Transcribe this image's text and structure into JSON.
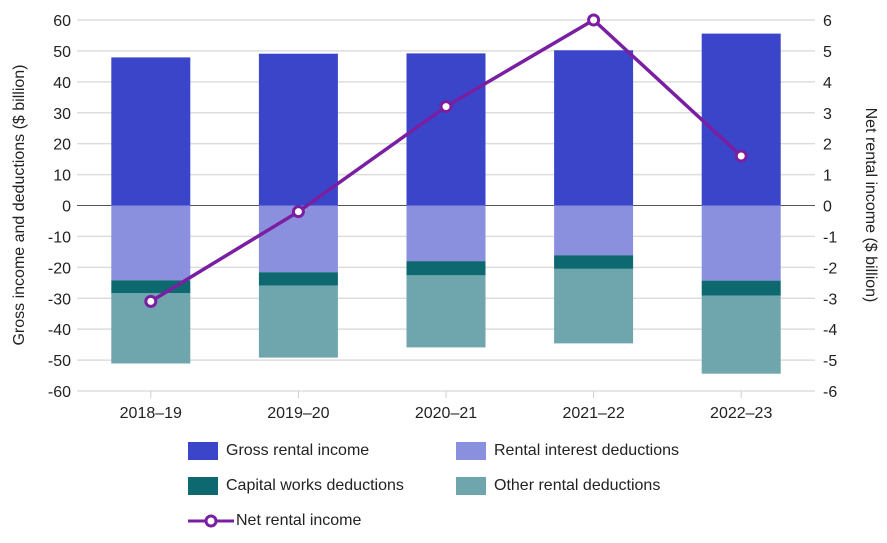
{
  "chart_data": {
    "type": "bar",
    "categories": [
      "2018–19",
      "2019–20",
      "2020–21",
      "2021–22",
      "2022–23"
    ],
    "ylabel": "Gross income and deductions ($ billion)",
    "y2label": "Net rental income ($ billion)",
    "ylim": [
      -60,
      60
    ],
    "y2lim": [
      -6,
      6
    ],
    "yticks": [
      "60",
      "50",
      "40",
      "30",
      "20",
      "10",
      "0",
      "-10",
      "-20",
      "-30",
      "-40",
      "-50",
      "-60"
    ],
    "y2ticks": [
      "6",
      "5",
      "4",
      "3",
      "2",
      "1",
      "0",
      "-1",
      "-2",
      "-3",
      "-4",
      "-5",
      "-6"
    ],
    "grid": true,
    "legend_placement": "bottom",
    "series": [
      {
        "name": "Gross rental income",
        "type": "bar",
        "color": "#3a45c9",
        "values": [
          47.9,
          49.1,
          49.2,
          50.2,
          55.6
        ]
      },
      {
        "name": "Rental interest deductions",
        "type": "bar",
        "color": "#8a90de",
        "values": [
          -24.2,
          -21.6,
          -18.0,
          -16.1,
          -24.3
        ]
      },
      {
        "name": "Capital works deductions",
        "type": "bar",
        "color": "#0e6870",
        "values": [
          -4.2,
          -4.3,
          -4.6,
          -4.4,
          -4.9
        ]
      },
      {
        "name": "Other rental deductions",
        "type": "bar",
        "color": "#6fa5ad",
        "values": [
          -22.7,
          -23.3,
          -23.3,
          -24.1,
          -25.2
        ]
      },
      {
        "name": "Net rental income",
        "type": "line",
        "axis": "right",
        "color": "#7a1fa2",
        "values": [
          -3.1,
          -0.2,
          3.2,
          6.0,
          1.6
        ]
      }
    ]
  }
}
